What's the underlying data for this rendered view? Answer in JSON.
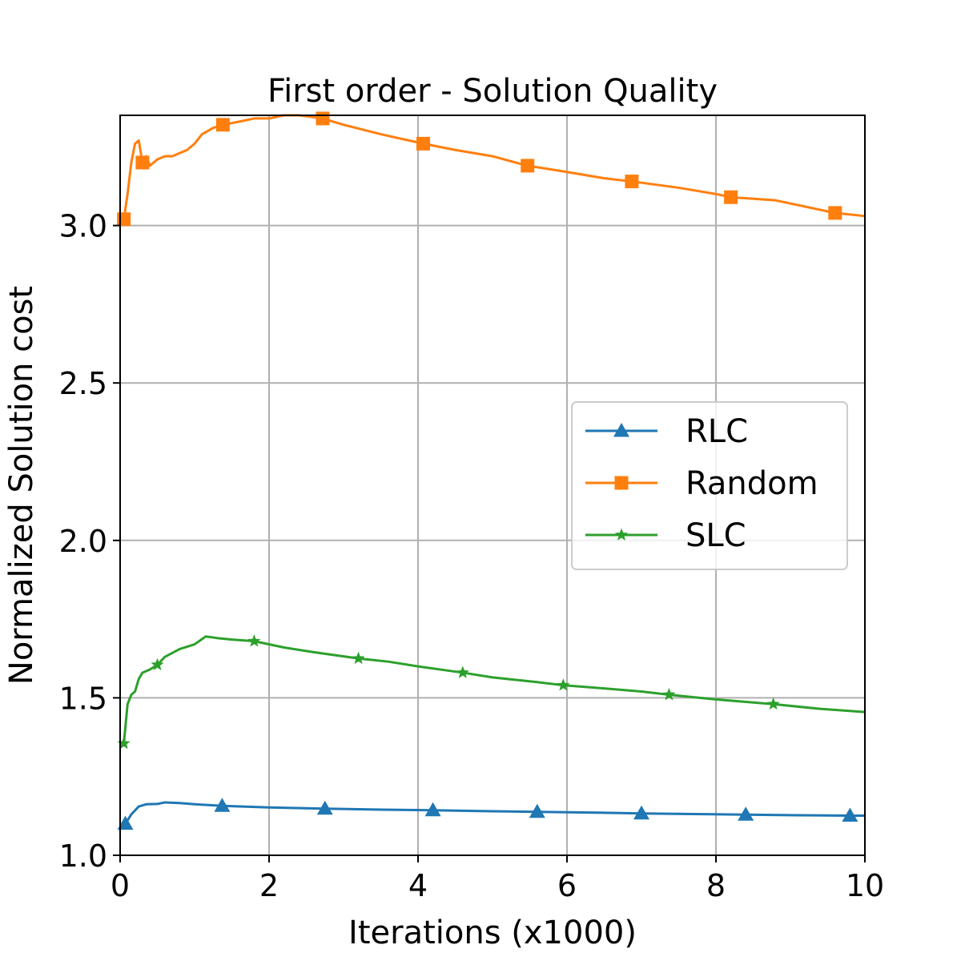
{
  "chart_data": {
    "type": "line",
    "title": "First order - Solution Quality",
    "xlabel": "Iterations (x1000)",
    "ylabel": "Normalized Solution cost",
    "xlim": [
      0,
      10
    ],
    "ylim": [
      1.0,
      3.35
    ],
    "xticks": [
      0,
      2,
      4,
      6,
      8,
      10
    ],
    "xtick_labels": [
      "0",
      "2",
      "4",
      "6",
      "8",
      "10"
    ],
    "yticks": [
      1.0,
      1.5,
      2.0,
      2.5,
      3.0
    ],
    "ytick_labels": [
      "1.0",
      "1.5",
      "2.0",
      "2.5",
      "3.0"
    ],
    "grid": true,
    "legend_position": "center-right",
    "series": [
      {
        "name": "RLC",
        "color": "#1f77b4",
        "marker": "triangle",
        "x": [
          0.07,
          0.15,
          0.25,
          0.35,
          0.5,
          0.6,
          0.8,
          1.0,
          1.37,
          2.0,
          2.75,
          3.5,
          4.2,
          5.0,
          5.6,
          6.5,
          7.0,
          7.7,
          8.4,
          9.1,
          9.8,
          10.0
        ],
        "y": [
          1.1,
          1.13,
          1.155,
          1.162,
          1.163,
          1.168,
          1.166,
          1.162,
          1.157,
          1.152,
          1.148,
          1.145,
          1.143,
          1.14,
          1.138,
          1.135,
          1.133,
          1.131,
          1.129,
          1.127,
          1.126,
          1.126
        ],
        "marker_x": [
          0.07,
          1.37,
          2.75,
          4.2,
          5.6,
          7.0,
          8.4,
          9.8
        ],
        "marker_y": [
          1.1,
          1.157,
          1.148,
          1.143,
          1.138,
          1.133,
          1.129,
          1.126
        ]
      },
      {
        "name": "Random",
        "color": "#ff7f0e",
        "marker": "square",
        "x": [
          0.05,
          0.1,
          0.15,
          0.2,
          0.25,
          0.3,
          0.35,
          0.4,
          0.5,
          0.6,
          0.7,
          0.8,
          0.9,
          1.0,
          1.1,
          1.25,
          1.38,
          1.6,
          1.8,
          2.0,
          2.2,
          2.4,
          2.72,
          3.0,
          3.5,
          4.07,
          4.5,
          5.0,
          5.47,
          6.0,
          6.5,
          6.87,
          7.5,
          8.0,
          8.2,
          8.8,
          9.2,
          9.6,
          10.0
        ],
        "y": [
          3.02,
          3.1,
          3.2,
          3.26,
          3.27,
          3.2,
          3.22,
          3.19,
          3.21,
          3.22,
          3.22,
          3.23,
          3.24,
          3.26,
          3.29,
          3.31,
          3.32,
          3.33,
          3.34,
          3.34,
          3.35,
          3.35,
          3.34,
          3.32,
          3.29,
          3.26,
          3.24,
          3.22,
          3.19,
          3.17,
          3.15,
          3.14,
          3.12,
          3.1,
          3.09,
          3.08,
          3.06,
          3.04,
          3.03
        ],
        "marker_x": [
          0.05,
          0.3,
          1.38,
          2.72,
          4.07,
          5.47,
          6.87,
          8.2,
          9.6
        ],
        "marker_y": [
          3.02,
          3.2,
          3.32,
          3.34,
          3.26,
          3.19,
          3.14,
          3.09,
          3.04
        ]
      },
      {
        "name": "SLC",
        "color": "#2ca02c",
        "marker": "star",
        "x": [
          0.05,
          0.1,
          0.15,
          0.2,
          0.25,
          0.3,
          0.35,
          0.4,
          0.5,
          0.6,
          0.8,
          1.0,
          1.15,
          1.3,
          1.5,
          1.8,
          2.2,
          2.6,
          3.2,
          3.6,
          4.0,
          4.6,
          5.0,
          5.6,
          5.95,
          6.5,
          7.0,
          7.37,
          8.0,
          8.77,
          9.4,
          10.0
        ],
        "y": [
          1.355,
          1.48,
          1.51,
          1.52,
          1.56,
          1.58,
          1.585,
          1.59,
          1.605,
          1.63,
          1.655,
          1.67,
          1.695,
          1.69,
          1.685,
          1.68,
          1.66,
          1.645,
          1.625,
          1.615,
          1.6,
          1.58,
          1.565,
          1.55,
          1.54,
          1.53,
          1.52,
          1.51,
          1.495,
          1.48,
          1.465,
          1.455
        ],
        "marker_x": [
          0.05,
          0.5,
          1.8,
          3.2,
          4.6,
          5.95,
          7.37,
          8.77
        ],
        "marker_y": [
          1.355,
          1.605,
          1.68,
          1.625,
          1.58,
          1.54,
          1.51,
          1.48
        ]
      }
    ]
  }
}
